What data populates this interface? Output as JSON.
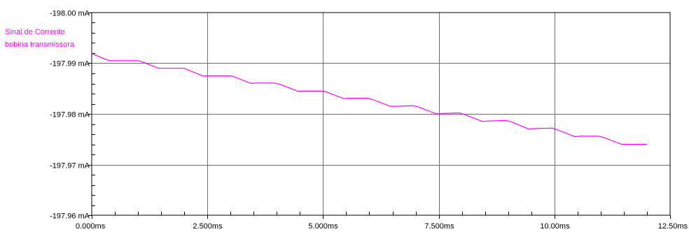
{
  "chart_data": {
    "type": "line",
    "x_unit": "ms",
    "y_unit": "mA",
    "xlim": [
      0,
      12.5
    ],
    "ylim": [
      -197.96,
      -198.0
    ],
    "y_axis_direction": "values decrease upward (-198.00 at top, -197.96 at bottom)",
    "grid": true,
    "x_ticks": [
      {
        "value": 0,
        "label": "0.000ms"
      },
      {
        "value": 2.5,
        "label": "2.500ms"
      },
      {
        "value": 5,
        "label": "5.000ms"
      },
      {
        "value": 7.5,
        "label": "7.500ms"
      },
      {
        "value": 10,
        "label": "10.00ms"
      },
      {
        "value": 12.5,
        "label": "12.50ms"
      }
    ],
    "y_ticks": [
      {
        "value": -198.0,
        "label": "-198.00 mA"
      },
      {
        "value": -197.99,
        "label": "-197.99 mA"
      },
      {
        "value": -197.98,
        "label": "-197.98 mA"
      },
      {
        "value": -197.97,
        "label": "-197.97 mA"
      },
      {
        "value": -197.96,
        "label": "-197.96 mA"
      }
    ],
    "legend": {
      "placement": "top-left",
      "lines": [
        "Sinal de Corrente",
        "bobina transmissora"
      ]
    },
    "series": [
      {
        "name": "Sinal de Corrente bobina transmissora",
        "color": "#ff00ff",
        "x": [
          0,
          0.38,
          0.5,
          1.0,
          1.05,
          1.45,
          1.55,
          2.0,
          2.05,
          2.4,
          2.5,
          3.0,
          3.05,
          3.45,
          3.55,
          3.95,
          4.05,
          4.45,
          4.55,
          5.0,
          5.05,
          5.45,
          5.55,
          5.95,
          6.05,
          6.45,
          6.55,
          6.95,
          7.05,
          7.45,
          7.55,
          7.95,
          8.05,
          8.45,
          8.55,
          8.95,
          9.05,
          9.45,
          9.55,
          9.95,
          10.05,
          10.45,
          10.55,
          10.95,
          11.05,
          11.45,
          11.55,
          12.0
        ],
        "y": [
          -197.9919,
          -197.9905,
          -197.9905,
          -197.9905,
          -197.9904,
          -197.989,
          -197.989,
          -197.989,
          -197.9888,
          -197.9875,
          -197.9875,
          -197.9875,
          -197.9874,
          -197.986,
          -197.9861,
          -197.9861,
          -197.9859,
          -197.9845,
          -197.9845,
          -197.9845,
          -197.9844,
          -197.983,
          -197.9831,
          -197.9831,
          -197.9829,
          -197.9815,
          -197.9815,
          -197.9816,
          -197.9814,
          -197.98,
          -197.9801,
          -197.9802,
          -197.9799,
          -197.9785,
          -197.9786,
          -197.9787,
          -197.9785,
          -197.977,
          -197.9771,
          -197.9772,
          -197.9769,
          -197.9755,
          -197.9756,
          -197.9756,
          -197.9754,
          -197.974,
          -197.974,
          -197.974
        ]
      }
    ]
  }
}
